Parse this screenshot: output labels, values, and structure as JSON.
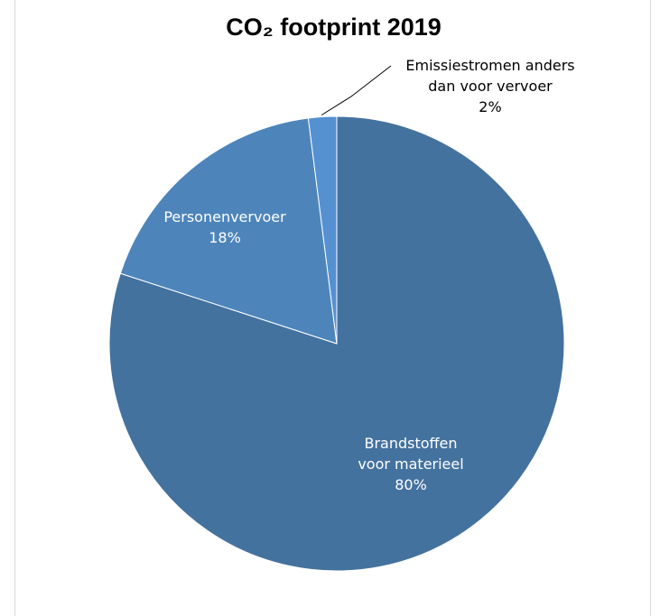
{
  "chart_data": {
    "type": "pie",
    "title": "CO₂ footprint 2019",
    "slices": [
      {
        "label_lines": [
          "Brandstoffen",
          "voor materieel"
        ],
        "value_text": "80%",
        "value": 80,
        "color": "#44729f"
      },
      {
        "label_lines": [
          "Personenvervoer"
        ],
        "value_text": "18%",
        "value": 18,
        "color": "#4d85bb"
      },
      {
        "label_lines": [
          "Emissiestromen anders",
          "dan voor vervoer"
        ],
        "value_text": "2%",
        "value": 2,
        "color": "#5591d1"
      }
    ],
    "label_colors": [
      "#ffffff",
      "#ffffff",
      "#000000"
    ],
    "legend": "none"
  }
}
